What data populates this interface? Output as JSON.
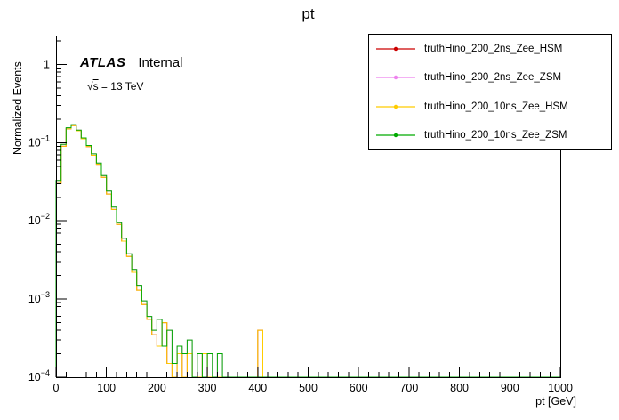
{
  "annotations": {
    "atlas": "ATLAS",
    "status": "Internal",
    "energy_radical": "√",
    "energy_symbol": "s",
    "energy_rest": " = 13 TeV"
  },
  "chart_data": {
    "type": "step-histogram",
    "title": "pt",
    "xlabel": "pt [GeV]",
    "ylabel": "Normalized Events",
    "yscale": "log",
    "xlim": [
      0,
      1000
    ],
    "ylim": [
      0.0001,
      2.34
    ],
    "x_ticks": [
      0,
      100,
      200,
      300,
      400,
      500,
      600,
      700,
      800,
      900,
      1000
    ],
    "x_minor_step": 20,
    "y_ticks": [
      {
        "exp": 0,
        "label": "1"
      },
      {
        "exp": -1,
        "label": "10^-1"
      },
      {
        "exp": -2,
        "label": "10^-2"
      },
      {
        "exp": -3,
        "label": "10^-3"
      },
      {
        "exp": -4,
        "label": "10^-4"
      }
    ],
    "bin_width": 10,
    "n_bins": 100,
    "legend_position": "top-right",
    "series": [
      {
        "name": "truthHino_200_2ns_Zee_HSM",
        "color": "#cc0000",
        "values": [
          0.03,
          0.09,
          0.15,
          0.165,
          0.142,
          0.112,
          0.089,
          0.069,
          0.053,
          0.036,
          0.022,
          0.014,
          0.009,
          0.0055,
          0.0035,
          0.0022,
          0.0013,
          0.00085,
          0.00055,
          0.00035,
          0.00025,
          0.0005,
          0.00015,
          0.0001,
          0.0002,
          0.0001,
          0.0002,
          0.0001,
          0.0001,
          0.0002,
          0.0001,
          0,
          0.0001,
          0,
          0,
          0,
          0,
          0,
          0,
          0,
          0.0004
        ]
      },
      {
        "name": "truthHino_200_2ns_Zee_ZSM",
        "color": "#ee82ee",
        "values": [
          0.033,
          0.095,
          0.155,
          0.17,
          0.145,
          0.115,
          0.092,
          0.072,
          0.055,
          0.038,
          0.024,
          0.015,
          0.0095,
          0.006,
          0.0038,
          0.0024,
          0.0015,
          0.00095,
          0.0006,
          0.0004,
          0.00055,
          0.00025,
          0.0004,
          0.00015,
          0.00025,
          0.0002,
          0.0003,
          0.0001,
          0.0002,
          0.0001,
          0.0002,
          0.0001,
          0.0002,
          0,
          0.0001,
          0,
          0.0001
        ]
      },
      {
        "name": "truthHino_200_10ns_Zee_HSM",
        "color": "#ffcc00",
        "values": [
          0.03,
          0.09,
          0.15,
          0.165,
          0.142,
          0.112,
          0.089,
          0.069,
          0.053,
          0.036,
          0.022,
          0.014,
          0.009,
          0.0055,
          0.0035,
          0.0022,
          0.0013,
          0.00085,
          0.00055,
          0.00035,
          0.00025,
          0.0005,
          0.00015,
          0.0001,
          0.0002,
          0.0001,
          0.0002,
          0.0001,
          0.0001,
          0.0002,
          0.0001,
          0,
          0.0001,
          0,
          0,
          0,
          0,
          0,
          0,
          0,
          0.0004
        ]
      },
      {
        "name": "truthHino_200_10ns_Zee_ZSM",
        "color": "#00aa00",
        "values": [
          0.033,
          0.095,
          0.155,
          0.17,
          0.145,
          0.115,
          0.092,
          0.072,
          0.055,
          0.038,
          0.024,
          0.015,
          0.0095,
          0.006,
          0.0038,
          0.0024,
          0.0015,
          0.00095,
          0.0006,
          0.0004,
          0.00055,
          0.00025,
          0.0004,
          0.00015,
          0.00025,
          0.0002,
          0.0003,
          0.0001,
          0.0002,
          0.0001,
          0.0002,
          0.0001,
          0.0002,
          0,
          0.0001,
          0,
          0.0001
        ]
      }
    ]
  }
}
